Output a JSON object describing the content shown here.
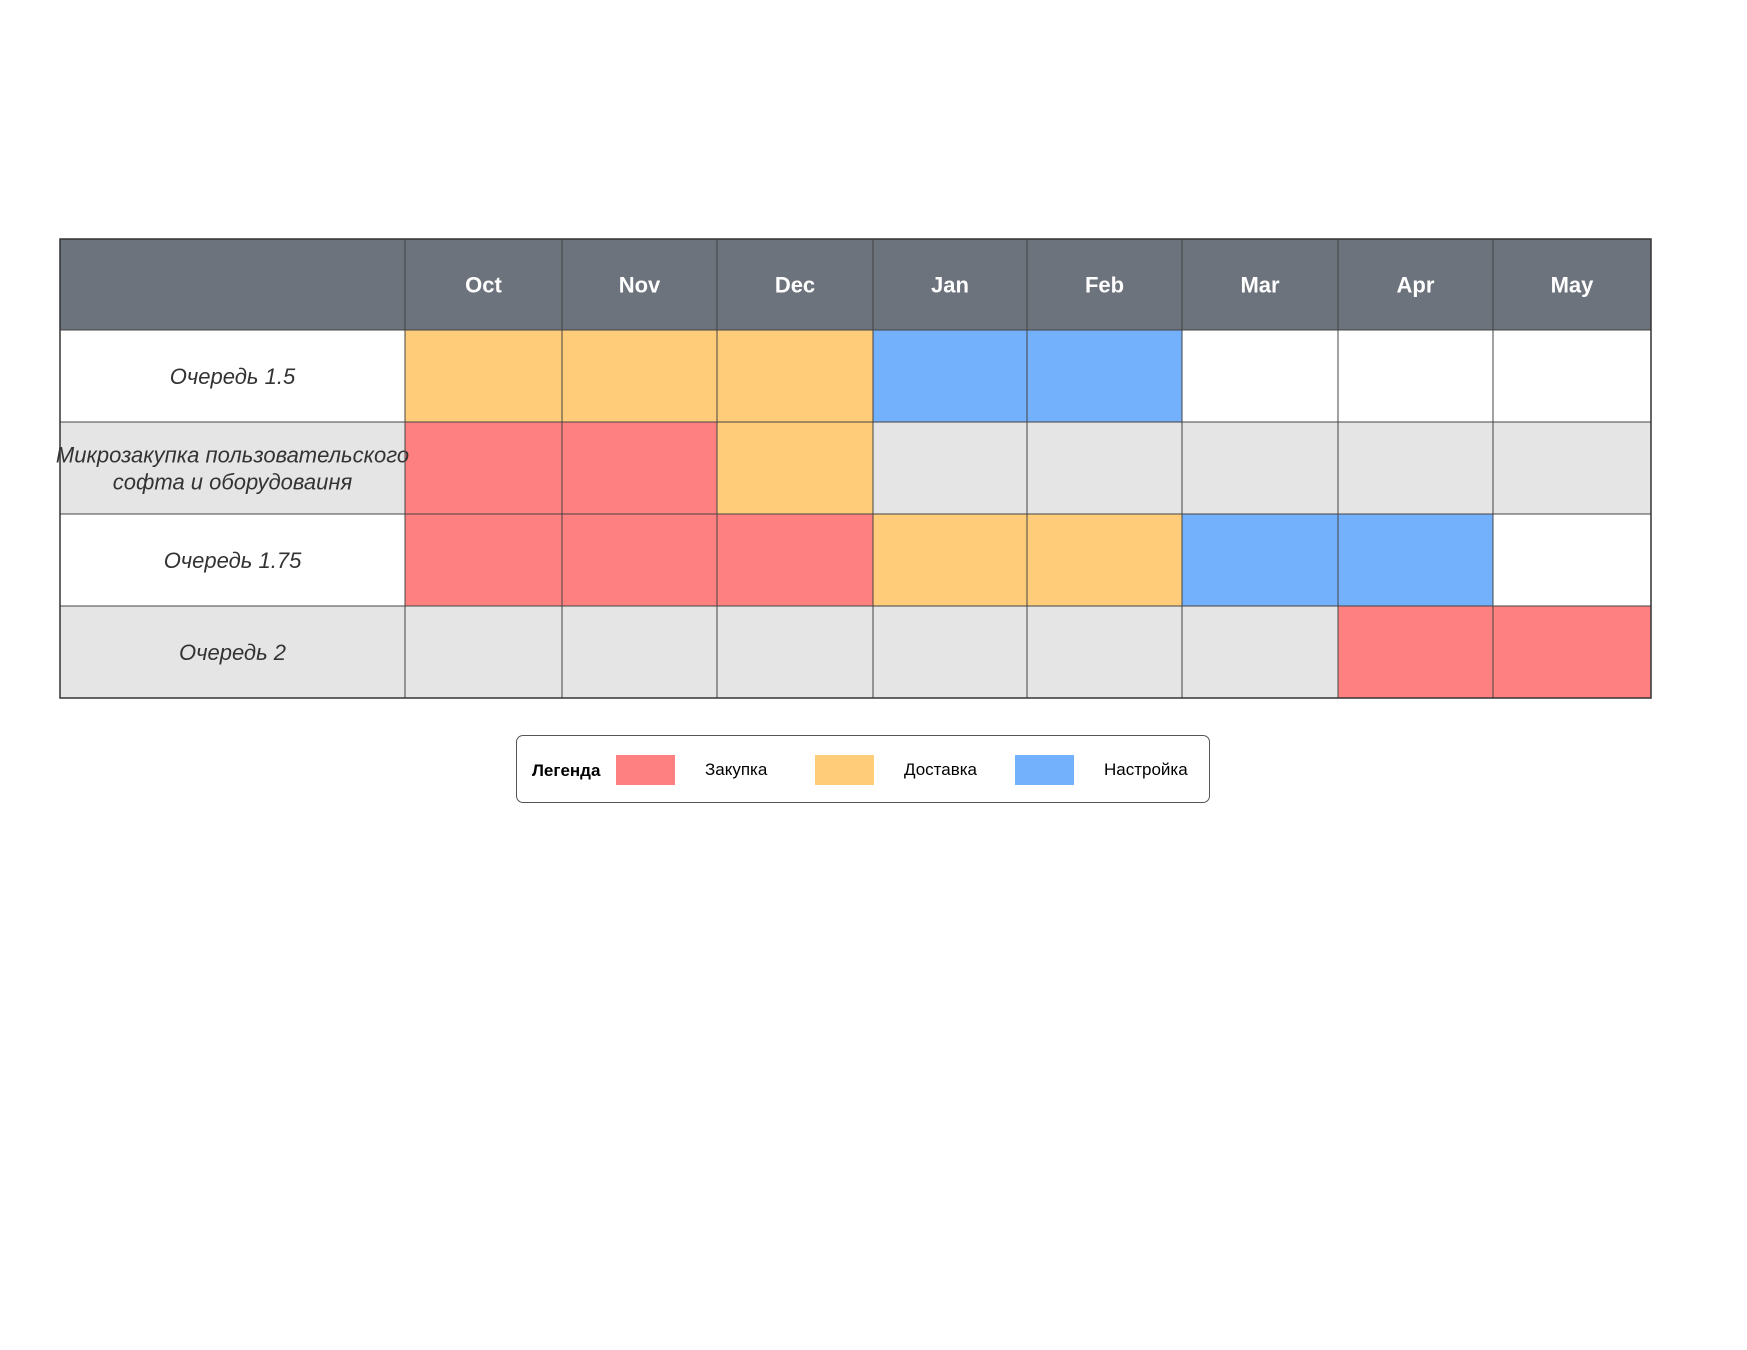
{
  "chart_data": {
    "type": "table",
    "months": [
      "Oct",
      "Nov",
      "Dec",
      "Jan",
      "Feb",
      "Mar",
      "Apr",
      "May"
    ],
    "rows": [
      {
        "label": "Очередь 1.5",
        "cells": [
          "delivery",
          "delivery",
          "delivery",
          "setup",
          "setup",
          "",
          "",
          ""
        ]
      },
      {
        "label": "Микрозакупка пользовательского софта и оборудоваиня",
        "cells": [
          "purchase",
          "purchase",
          "delivery",
          "",
          "",
          "",
          "",
          ""
        ]
      },
      {
        "label": "Очередь 1.75",
        "cells": [
          "purchase",
          "purchase",
          "purchase",
          "delivery",
          "delivery",
          "setup",
          "setup",
          ""
        ]
      },
      {
        "label": "Очередь 2",
        "cells": [
          "",
          "",
          "",
          "",
          "",
          "",
          "purchase",
          "purchase"
        ]
      }
    ],
    "legend": {
      "title": "Легенда",
      "items": [
        {
          "key": "purchase",
          "label": "Закупка",
          "color": "#ff8080"
        },
        {
          "key": "delivery",
          "label": "Доставка",
          "color": "#ffcc79"
        },
        {
          "key": "setup",
          "label": "Настройка",
          "color": "#74b1fc"
        }
      ]
    },
    "colors": {
      "header_bg": "#6c737c",
      "row_bg_odd": "#ffffff",
      "row_bg_even": "#e5e5e5",
      "grid_line": "#444444"
    }
  }
}
